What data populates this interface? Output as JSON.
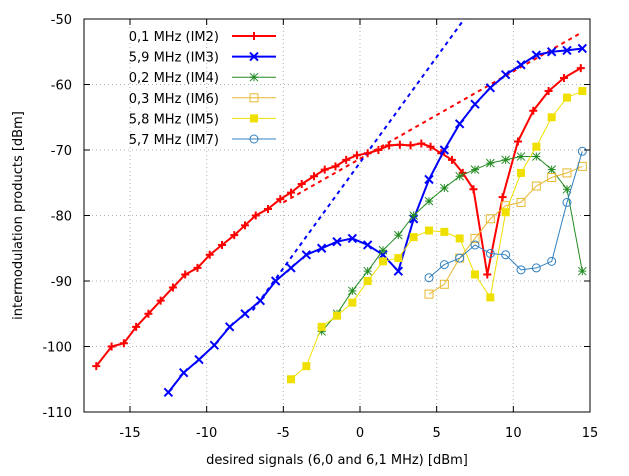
{
  "chart_data": {
    "type": "line",
    "title": "",
    "xlabel": "desired signals (6,0 and 6,1 MHz) [dBm]",
    "ylabel": "intermodulation products [dBm]",
    "xlim": [
      -18,
      15
    ],
    "ylim": [
      -110,
      -50
    ],
    "x_ticks": [
      -15,
      -10,
      -5,
      0,
      5,
      10,
      15
    ],
    "y_ticks": [
      -110,
      -100,
      -90,
      -80,
      -70,
      -60,
      -50
    ],
    "x_tick_labels": [
      "-15",
      "-10",
      "-5",
      "0",
      "5",
      "10",
      "15"
    ],
    "y_tick_labels": [
      "-110",
      "-100",
      "-90",
      "-80",
      "-70",
      "-60",
      "-50"
    ],
    "grid": true,
    "legend_position": "top-left",
    "series": [
      {
        "name": "0,1 MHz (IM2)",
        "color": "#ff0000",
        "marker": "plus",
        "x": [
          -17.2,
          -16.2,
          -15.4,
          -14.6,
          -13.8,
          -13.0,
          -12.2,
          -11.4,
          -10.6,
          -9.8,
          -9.0,
          -8.2,
          -7.5,
          -6.8,
          -6.0,
          -5.2,
          -4.5,
          -3.8,
          -3.0,
          -2.3,
          -1.6,
          -0.9,
          -0.2,
          0.5,
          1.2,
          1.9,
          2.6,
          3.3,
          4.0,
          4.6,
          5.3,
          6.0,
          6.7,
          7.4,
          8.3,
          9.3,
          10.3,
          11.3,
          12.3,
          13.3,
          14.4
        ],
        "y": [
          -103,
          -100,
          -99.5,
          -97,
          -95,
          -93,
          -91,
          -89,
          -88,
          -86,
          -84.5,
          -83,
          -81.5,
          -80,
          -79,
          -77.5,
          -76.5,
          -75.2,
          -74,
          -73,
          -72.5,
          -71.5,
          -70.8,
          -70.5,
          -70,
          -69.3,
          -69.2,
          -69.3,
          -69,
          -69.5,
          -70.5,
          -71.5,
          -73.5,
          -76,
          -89,
          -77.2,
          -68.7,
          -64,
          -61,
          -59,
          -57.5
        ]
      },
      {
        "name": "5,9 MHz (IM3)",
        "color": "#0000ff",
        "marker": "x",
        "x": [
          -12.5,
          -11.5,
          -10.5,
          -9.5,
          -8.5,
          -7.5,
          -6.5,
          -5.5,
          -4.5,
          -3.5,
          -2.5,
          -1.5,
          -0.5,
          0.5,
          1.5,
          2.5,
          3.5,
          4.5,
          5.5,
          6.5,
          7.5,
          8.5,
          9.5,
          10.5,
          11.5,
          12.5,
          13.5,
          14.5
        ],
        "y": [
          -107,
          -104,
          -102,
          -99.8,
          -97,
          -95,
          -93,
          -90,
          -88,
          -86,
          -85,
          -84,
          -83.5,
          -84.5,
          -86,
          -88.5,
          -80.5,
          -74.5,
          -70,
          -66,
          -63,
          -60.5,
          -58.5,
          -57,
          -55.5,
          -55,
          -54.8,
          -54.5
        ]
      },
      {
        "name": "0,2 MHz (IM4)",
        "color": "#228b22",
        "marker": "star",
        "x": [
          -2.5,
          -1.5,
          -0.5,
          0.5,
          1.5,
          2.5,
          3.5,
          4.5,
          5.5,
          6.5,
          7.5,
          8.5,
          9.5,
          10.5,
          11.5,
          12.5,
          13.5,
          14.5
        ],
        "y": [
          -97.7,
          -95,
          -91.5,
          -88.5,
          -85.3,
          -83,
          -80,
          -77.8,
          -75.8,
          -74,
          -73,
          -72,
          -71.5,
          -71,
          -71,
          -73,
          -76,
          -88.5
        ]
      },
      {
        "name": "0,3 MHz (IM6)",
        "color": "#e8b830",
        "marker": "square-open",
        "x": [
          4.5,
          5.5,
          6.5,
          7.5,
          8.5,
          9.5,
          10.5,
          11.5,
          12.5,
          13.5,
          14.5
        ],
        "y": [
          -92,
          -90.5,
          -86.5,
          -83.5,
          -80.5,
          -78.5,
          -78,
          -75.5,
          -74.2,
          -73.5,
          -72.5
        ]
      },
      {
        "name": "5,8 MHz (IM5)",
        "color": "#f0e000",
        "marker": "square-filled",
        "x": [
          -4.5,
          -3.5,
          -2.5,
          -1.5,
          -0.5,
          0.5,
          1.5,
          2.5,
          3.5,
          4.5,
          5.5,
          6.5,
          7.5,
          8.5,
          9.5,
          10.5,
          11.5,
          12.5,
          13.5,
          14.5
        ],
        "y": [
          -105,
          -103,
          -97,
          -95.3,
          -93.3,
          -90,
          -87,
          -86.5,
          -83.3,
          -82.3,
          -82.5,
          -83.5,
          -89,
          -92.5,
          -79.5,
          -73.5,
          -69.5,
          -65,
          -62,
          -61
        ]
      },
      {
        "name": "5,7 MHz (IM7)",
        "color": "#3080c0",
        "marker": "circle-open",
        "x": [
          4.5,
          5.5,
          6.5,
          7.5,
          8.5,
          9.5,
          10.5,
          11.5,
          12.5,
          13.5,
          14.5
        ],
        "y": [
          -89.5,
          -87.5,
          -86.5,
          -84.5,
          -85.8,
          -86,
          -88.3,
          -88,
          -87,
          -78,
          -70.2
        ]
      }
    ],
    "asymptotes": [
      {
        "color": "#ff0000",
        "x": [
          -5,
          14.5
        ],
        "y": [
          -78,
          -52
        ]
      },
      {
        "color": "#0000ff",
        "x": [
          -7,
          6.8
        ],
        "y": [
          -94.5,
          -50
        ]
      }
    ]
  }
}
